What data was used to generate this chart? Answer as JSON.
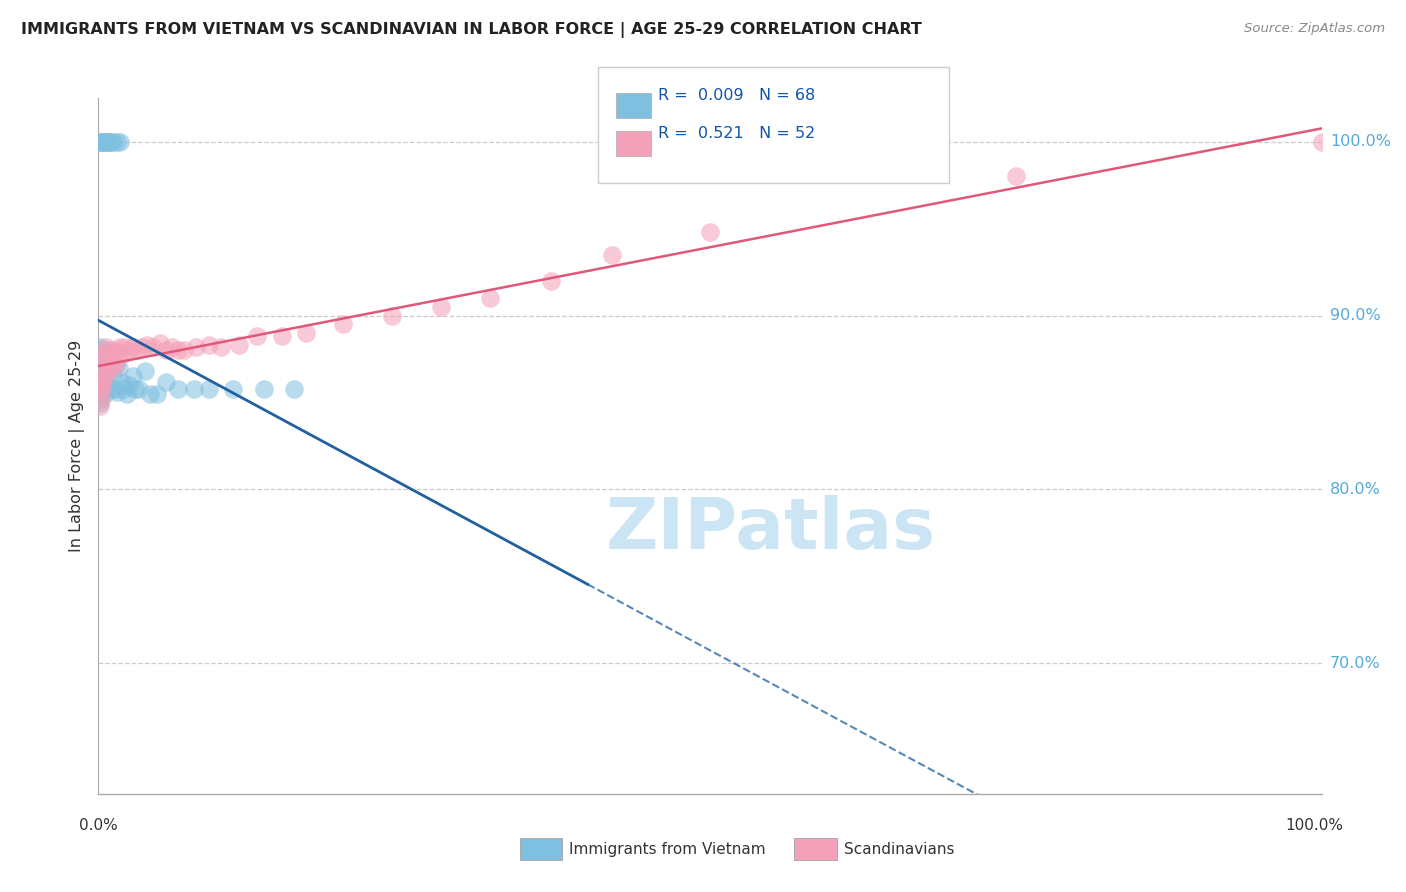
{
  "title": "IMMIGRANTS FROM VIETNAM VS SCANDINAVIAN IN LABOR FORCE | AGE 25-29 CORRELATION CHART",
  "source": "Source: ZipAtlas.com",
  "ylabel": "In Labor Force | Age 25-29",
  "blue_color": "#7fbfdf",
  "pink_color": "#f4a0b8",
  "blue_line_color": "#2060a0",
  "pink_line_color": "#e05878",
  "watermark_color": "#cce5f5",
  "ytick_color": "#55aadd",
  "yticks": [
    0.7,
    0.8,
    0.9,
    1.0
  ],
  "ytick_labels": [
    "70.0%",
    "80.0%",
    "90.0%",
    "100.0%"
  ],
  "xlim": [
    0.0,
    1.0
  ],
  "ylim": [
    0.625,
    1.025
  ],
  "vietnam_x": [
    0.001,
    0.001,
    0.001,
    0.001,
    0.001,
    0.001,
    0.001,
    0.001,
    0.001,
    0.002,
    0.002,
    0.002,
    0.002,
    0.002,
    0.002,
    0.003,
    0.003,
    0.003,
    0.003,
    0.003,
    0.004,
    0.004,
    0.004,
    0.005,
    0.005,
    0.005,
    0.006,
    0.006,
    0.007,
    0.008,
    0.009,
    0.01,
    0.011,
    0.012,
    0.013,
    0.014,
    0.015,
    0.017,
    0.019,
    0.021,
    0.023,
    0.025,
    0.028,
    0.03,
    0.033,
    0.038,
    0.042,
    0.048,
    0.055,
    0.065,
    0.078,
    0.09,
    0.11,
    0.135,
    0.16,
    0.001,
    0.002,
    0.003,
    0.004,
    0.005,
    0.006,
    0.007,
    0.008,
    0.009,
    0.01,
    0.012,
    0.015,
    0.018
  ],
  "vietnam_y": [
    0.862,
    0.858,
    0.855,
    0.852,
    0.87,
    0.875,
    0.882,
    0.867,
    0.85,
    0.88,
    0.87,
    0.862,
    0.857,
    0.875,
    0.868,
    0.878,
    0.872,
    0.865,
    0.858,
    0.862,
    0.878,
    0.87,
    0.858,
    0.875,
    0.865,
    0.855,
    0.872,
    0.86,
    0.87,
    0.868,
    0.872,
    0.88,
    0.858,
    0.865,
    0.858,
    0.872,
    0.856,
    0.87,
    0.862,
    0.858,
    0.855,
    0.86,
    0.865,
    0.858,
    0.858,
    0.868,
    0.855,
    0.855,
    0.862,
    0.858,
    0.858,
    0.858,
    0.858,
    0.858,
    0.858,
    1.0,
    1.0,
    1.0,
    1.0,
    1.0,
    1.0,
    1.0,
    1.0,
    1.0,
    1.0,
    1.0,
    1.0,
    1.0
  ],
  "scand_x": [
    0.001,
    0.001,
    0.002,
    0.002,
    0.003,
    0.003,
    0.004,
    0.004,
    0.005,
    0.005,
    0.006,
    0.006,
    0.007,
    0.008,
    0.009,
    0.01,
    0.011,
    0.012,
    0.013,
    0.014,
    0.015,
    0.016,
    0.018,
    0.02,
    0.022,
    0.025,
    0.028,
    0.032,
    0.036,
    0.04,
    0.045,
    0.05,
    0.055,
    0.06,
    0.065,
    0.07,
    0.08,
    0.09,
    0.1,
    0.115,
    0.13,
    0.15,
    0.17,
    0.2,
    0.24,
    0.28,
    0.32,
    0.37,
    0.42,
    0.5,
    0.75,
    1.0
  ],
  "scand_y": [
    0.858,
    0.848,
    0.862,
    0.852,
    0.87,
    0.858,
    0.875,
    0.862,
    0.878,
    0.866,
    0.882,
    0.868,
    0.875,
    0.88,
    0.878,
    0.872,
    0.875,
    0.87,
    0.878,
    0.872,
    0.88,
    0.876,
    0.882,
    0.878,
    0.882,
    0.88,
    0.882,
    0.88,
    0.882,
    0.883,
    0.882,
    0.884,
    0.88,
    0.882,
    0.88,
    0.88,
    0.882,
    0.883,
    0.882,
    0.883,
    0.888,
    0.888,
    0.89,
    0.895,
    0.9,
    0.905,
    0.91,
    0.92,
    0.935,
    0.948,
    0.98,
    1.0
  ],
  "legend_blue_R": "0.009",
  "legend_blue_N": "68",
  "legend_pink_R": "0.521",
  "legend_pink_N": "52"
}
